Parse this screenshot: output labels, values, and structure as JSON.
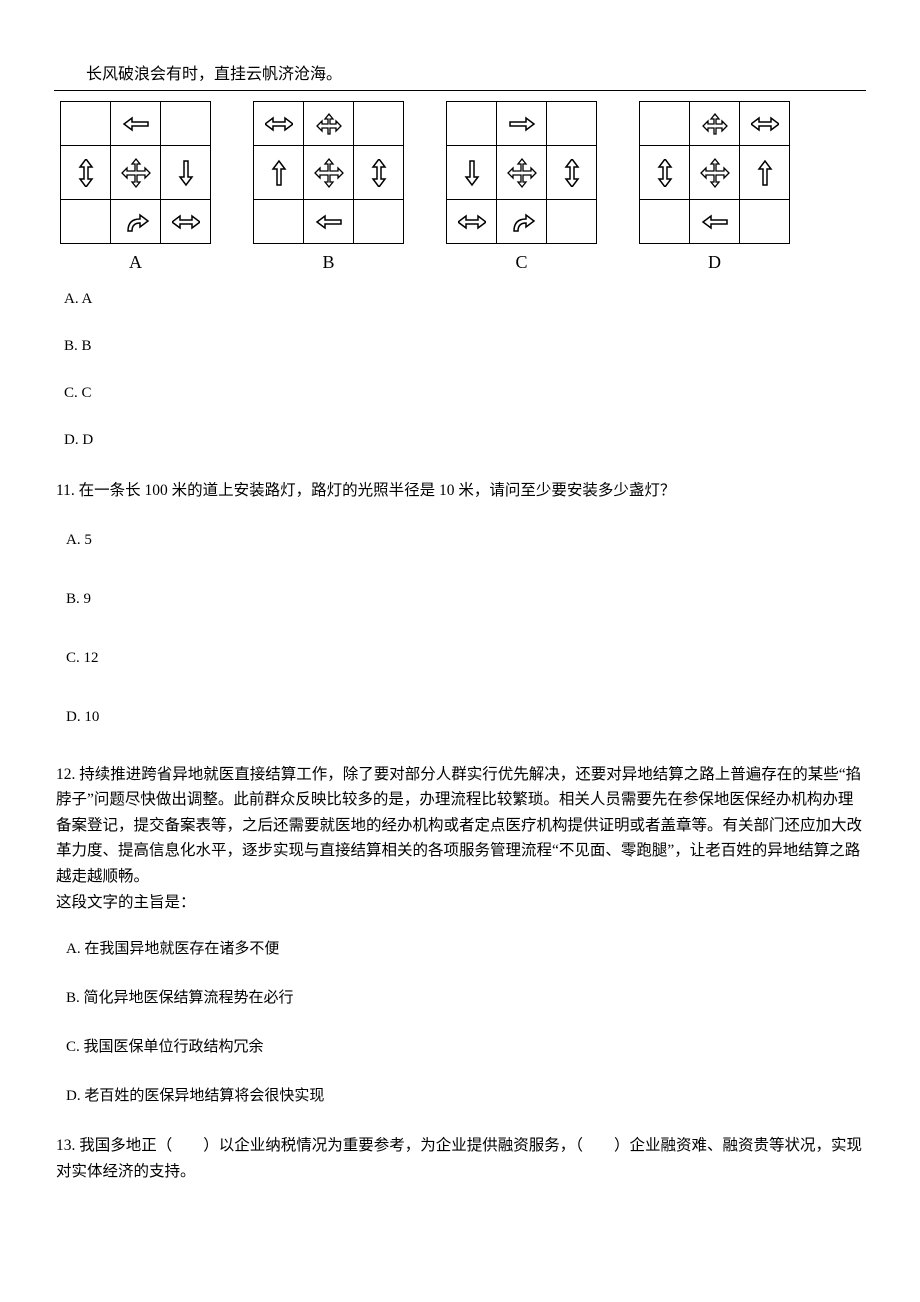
{
  "header_quote": "长风破浪会有时，直挂云帆济沧海。",
  "grid_labels": [
    "A",
    "B",
    "C",
    "D"
  ],
  "grids": {
    "A": [
      [
        "",
        "arrow-left",
        ""
      ],
      [
        "arrow-ud",
        "move-all",
        "arrow-down"
      ],
      [
        "",
        "curve-right",
        "arrow-lr"
      ]
    ],
    "B": [
      [
        "arrow-lr",
        "arrow-down-split",
        ""
      ],
      [
        "arrow-up",
        "move-all",
        "arrow-ud"
      ],
      [
        "",
        "arrow-left",
        ""
      ]
    ],
    "C": [
      [
        "",
        "arrow-right",
        ""
      ],
      [
        "arrow-down",
        "move-all",
        "arrow-ud"
      ],
      [
        "arrow-lr",
        "curve-right",
        ""
      ]
    ],
    "D": [
      [
        "",
        "arrow-down-split",
        "arrow-lr"
      ],
      [
        "arrow-ud",
        "move-all",
        "arrow-up"
      ],
      [
        "",
        "arrow-left",
        ""
      ]
    ]
  },
  "q10_options": [
    "A. A",
    "B. B",
    "C. C",
    "D. D"
  ],
  "q11": {
    "text": "11. 在一条长 100 米的道上安装路灯，路灯的光照半径是 10 米，请问至少要安装多少盏灯？",
    "options": [
      "A. 5",
      "B. 9",
      "C. 12",
      "D. 10"
    ]
  },
  "q12": {
    "para": "12. 持续推进跨省异地就医直接结算工作，除了要对部分人群实行优先解决，还要对异地结算之路上普遍存在的某些“掐脖子”问题尽快做出调整。此前群众反映比较多的是，办理流程比较繁琐。相关人员需要先在参保地医保经办机构办理备案登记，提交备案表等，之后还需要就医地的经办机构或者定点医疗机构提供证明或者盖章等。有关部门还应加大改革力度、提高信息化水平，逐步实现与直接结算相关的各项服务管理流程“不见面、零跑腿”，让老百姓的异地结算之路越走越顺畅。",
    "tail": "这段文字的主旨是：",
    "options": [
      "A. 在我国异地就医存在诸多不便",
      "B. 简化异地医保结算流程势在必行",
      "C. 我国医保单位行政结构冗余",
      "D. 老百姓的医保异地结算将会很快实现"
    ]
  },
  "q13": "13. 我国多地正（　　）以企业纳税情况为重要参考，为企业提供融资服务，（　　）企业融资难、融资贵等状况，实现对实体经济的支持。",
  "colors": {
    "text": "#000000",
    "bg": "#ffffff",
    "border": "#000000"
  }
}
